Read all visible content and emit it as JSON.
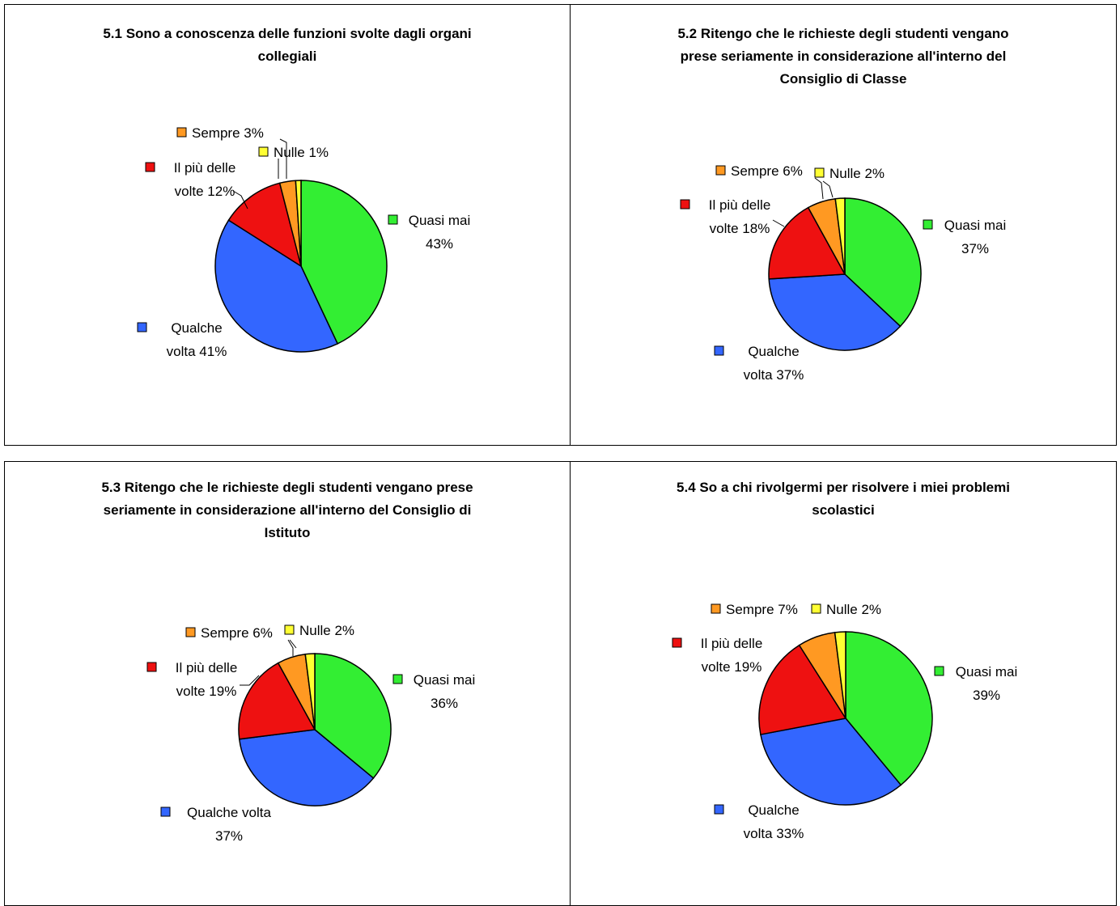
{
  "chart_data": [
    {
      "type": "pie",
      "title": "5.1 Sono a conoscenza delle funzioni svolte dagli organi\ncollegiali",
      "categories": [
        "Quasi mai",
        "Qualche volta",
        "Il più delle volte",
        "Sempre",
        "Nulle"
      ],
      "values": [
        43,
        41,
        12,
        3,
        1
      ],
      "labels": [
        "Quasi mai\n43%",
        "Qualche\nvolta 41%",
        "Il più delle\nvolte 12%",
        "Sempre 3%",
        "Nulle 1%"
      ]
    },
    {
      "type": "pie",
      "title": "5.2 Ritengo che le richieste degli studenti vengano\nprese seriamente in considerazione all'interno del\nConsiglio di Classe",
      "categories": [
        "Quasi mai",
        "Qualche volta",
        "Il più delle volte",
        "Sempre",
        "Nulle"
      ],
      "values": [
        37,
        37,
        18,
        6,
        2
      ],
      "labels": [
        "Quasi mai\n37%",
        "Qualche\nvolta 37%",
        "Il più delle\nvolte 18%",
        "Sempre 6%",
        "Nulle 2%"
      ]
    },
    {
      "type": "pie",
      "title": "5.3 Ritengo che le richieste degli studenti vengano prese\nseriamente in considerazione all'interno del Consiglio di\nIstituto",
      "categories": [
        "Quasi mai",
        "Qualche volta",
        "Il più delle volte",
        "Sempre",
        "Nulle"
      ],
      "values": [
        36,
        37,
        19,
        6,
        2
      ],
      "labels": [
        "Quasi mai\n36%",
        "Qualche volta\n37%",
        "Il più delle\nvolte 19%",
        "Sempre 6%",
        "Nulle 2%"
      ]
    },
    {
      "type": "pie",
      "title": "5.4 So a chi rivolgermi per risolvere i miei problemi\nscolastici",
      "categories": [
        "Quasi mai",
        "Qualche volta",
        "Il più delle volte",
        "Sempre",
        "Nulle"
      ],
      "values": [
        39,
        33,
        19,
        7,
        2
      ],
      "labels": [
        "Quasi mai\n39%",
        "Qualche\nvolta 33%",
        "Il più delle\nvolte 19%",
        "Sempre 7%",
        "Nulle 2%"
      ]
    }
  ],
  "colors": {
    "Quasi mai": "#33ee33",
    "Qualche volta": "#3366ff",
    "Il più delle volte": "#ee1111",
    "Sempre": "#ff9922",
    "Nulle": "#ffff33"
  }
}
